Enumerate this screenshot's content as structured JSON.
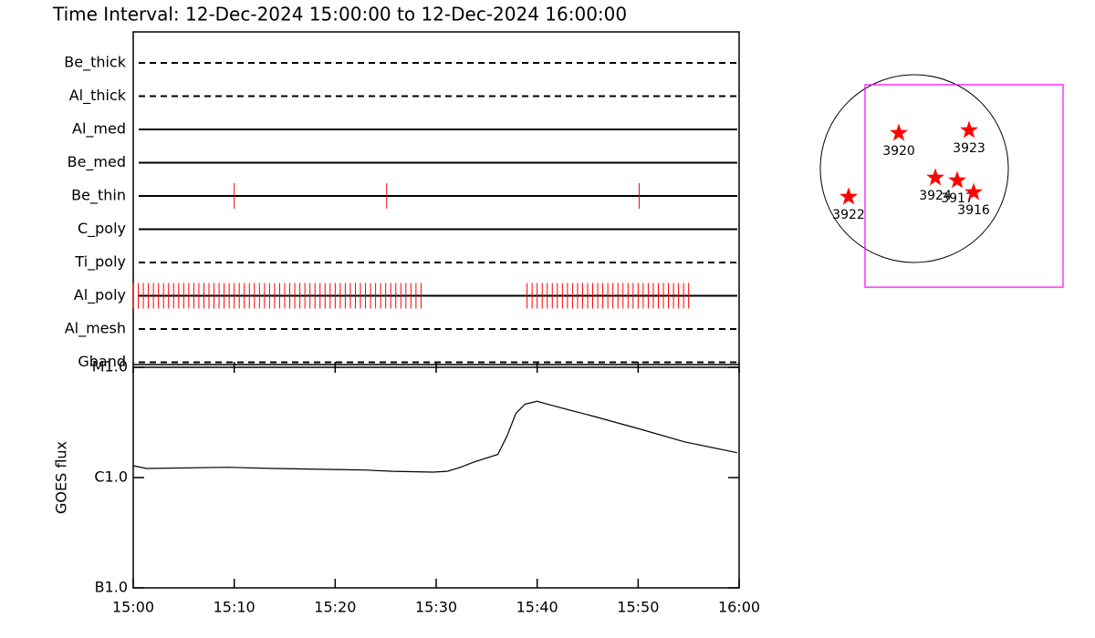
{
  "chart_data": [
    {
      "type": "timeline",
      "title": "Time Interval: 12-Dec-2024 15:00:00 to 12-Dec-2024 16:00:00",
      "categories": [
        "Be_thick",
        "Al_thick",
        "Al_med",
        "Be_med",
        "Be_thin",
        "C_poly",
        "Ti_poly",
        "Al_poly",
        "Al_mesh",
        "Gband"
      ],
      "line_styles": [
        "dashed",
        "dashed",
        "solid",
        "solid",
        "solid",
        "solid",
        "dashed",
        "solid",
        "dashed",
        "dashed"
      ],
      "events": [
        [],
        [],
        [],
        [],
        [
          10,
          25.1,
          50.1
        ],
        [],
        [],
        [
          0,
          0.5,
          1,
          1.5,
          2,
          2.5,
          3,
          3.5,
          4,
          4.5,
          5,
          5.5,
          6,
          6.5,
          7,
          7.5,
          8,
          8.5,
          9,
          9.5,
          10,
          10.5,
          11,
          11.5,
          12,
          12.5,
          13,
          13.5,
          14,
          14.5,
          15,
          15.5,
          16,
          16.5,
          17,
          17.5,
          18,
          18.5,
          19,
          19.5,
          20,
          20.5,
          21,
          21.5,
          22,
          22.5,
          23,
          23.5,
          24,
          24.5,
          25,
          25.5,
          26,
          26.5,
          27,
          27.5,
          28,
          28.5,
          39,
          39.5,
          40,
          40.5,
          41,
          41.5,
          42,
          42.5,
          43,
          43.5,
          44,
          44.5,
          45,
          45.5,
          46,
          46.5,
          47,
          47.5,
          48,
          48.5,
          49,
          49.5,
          50,
          50.5,
          51,
          51.5,
          52,
          52.5,
          53,
          53.5,
          54,
          54.5,
          55
        ],
        [],
        []
      ],
      "color": "#ff0000",
      "xlim": [
        0,
        60
      ]
    },
    {
      "type": "line",
      "ylabel": "GOES flux",
      "x": [
        0,
        1.3,
        9.4,
        13.9,
        22.9,
        25.7,
        29.7,
        31.1,
        32.4,
        33.8,
        36.1,
        37.0,
        37.9,
        38.8,
        40.0,
        41.0,
        45.5,
        50.1,
        54.6,
        59.8
      ],
      "values": [
        1.28e-06,
        1.21e-06,
        1.24e-06,
        1.21e-06,
        1.17e-06,
        1.14e-06,
        1.12e-06,
        1.14e-06,
        1.24e-06,
        1.39e-06,
        1.62e-06,
        2.37e-06,
        3.83e-06,
        4.64e-06,
        4.92e-06,
        4.64e-06,
        3.61e-06,
        2.77e-06,
        2.11e-06,
        1.68e-06
      ],
      "color": "#000000",
      "log_y": true,
      "xlim": [
        0,
        60
      ],
      "xticks": [
        {
          "value": 0,
          "label": "15:00"
        },
        {
          "value": 10,
          "label": "15:10"
        },
        {
          "value": 20,
          "label": "15:20"
        },
        {
          "value": 30,
          "label": "15:30"
        },
        {
          "value": 40,
          "label": "15:40"
        },
        {
          "value": 50,
          "label": "15:50"
        },
        {
          "value": 60,
          "label": "16:00"
        }
      ],
      "ylim": [
        1e-07,
        1e-05
      ],
      "yticks": [
        {
          "value": 1e-07,
          "label": "B1.0"
        },
        {
          "value": 1e-06,
          "label": "C1.0"
        },
        {
          "value": 1e-05,
          "label": "M1.0"
        }
      ]
    },
    {
      "type": "scatter",
      "labels": [
        "3920",
        "3923",
        "3924",
        "3917",
        "3916",
        "3922"
      ],
      "x": [
        -160,
        565,
        217,
        443,
        612,
        -678
      ],
      "y": [
        367,
        396,
        -94,
        -122,
        -245,
        -292
      ],
      "color": "#ff0000",
      "rsun": 970,
      "fov": {
        "xlim": [
          -509,
          1535
        ],
        "ylim": [
          -1225,
          867
        ],
        "color": "#ff00ff"
      }
    }
  ]
}
